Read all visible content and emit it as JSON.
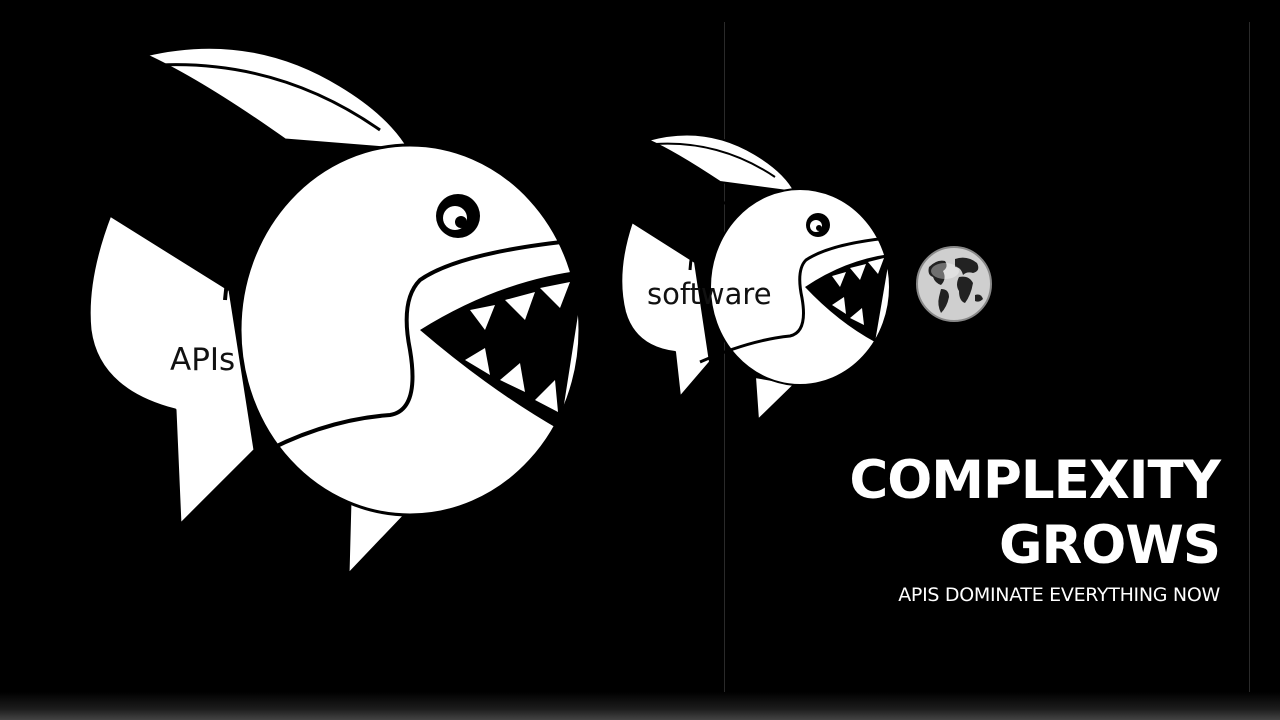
{
  "slide": {
    "title_line1": "COMPLEXITY",
    "title_line2": "GROWS",
    "subtitle": "APIS DOMINATE EVERYTHING NOW"
  },
  "illustration": {
    "big_fish": {
      "label": "APIs",
      "icon": "fish-icon"
    },
    "medium_fish": {
      "label": "software",
      "icon": "fish-icon"
    },
    "small_item": {
      "icon": "globe-icon"
    }
  },
  "colors": {
    "background": "#000000",
    "foreground": "#ffffff",
    "label_text": "#111111"
  }
}
